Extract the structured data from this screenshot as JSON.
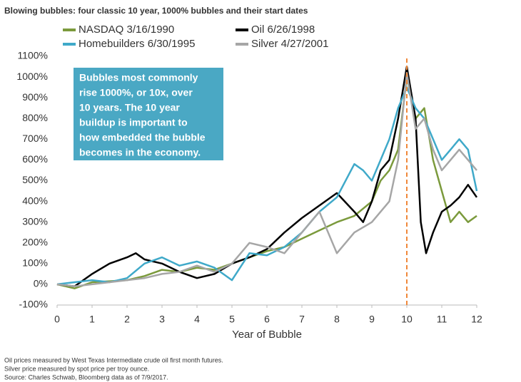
{
  "chart_data": {
    "type": "line",
    "title": "Blowing bubbles: four classic 10 year, 1000% bubbles and their start dates",
    "xlabel": "Year of Bubble",
    "xlim": [
      0,
      12
    ],
    "xticks": [
      0,
      1,
      2,
      3,
      4,
      5,
      6,
      7,
      8,
      9,
      10,
      11,
      12
    ],
    "ylim": [
      -100,
      1100
    ],
    "yticks": [
      {
        "value": -100,
        "label": "-100%"
      },
      {
        "value": 0,
        "label": "0%"
      },
      {
        "value": 100,
        "label": "100%"
      },
      {
        "value": 200,
        "label": "200%"
      },
      {
        "value": 300,
        "label": "300%"
      },
      {
        "value": 400,
        "label": "400%"
      },
      {
        "value": 500,
        "label": "500%"
      },
      {
        "value": 600,
        "label": "600%"
      },
      {
        "value": 700,
        "label": "700%"
      },
      {
        "value": 800,
        "label": "800%"
      },
      {
        "value": 900,
        "label": "900%"
      },
      {
        "value": 1000,
        "label": "1000%"
      },
      {
        "value": 1100,
        "label": "1100%"
      }
    ],
    "grid": false,
    "vline": {
      "x": 10,
      "color": "#f0883a"
    },
    "annotation": {
      "lines": [
        "Bubbles most commonly",
        "rise 1000%, or 10x, over",
        "10 years. The 10 year",
        "buildup is important to",
        "how embedded the bubble",
        "becomes in the economy."
      ],
      "color": "#4aa8c4"
    },
    "notes": [
      "Oil prices measured by West Texas Intermediate crude oil first month futures.",
      "Silver price measured by spot price per troy ounce.",
      "Source: Charles Schwab, Bloomberg data as of 7/9/2017."
    ],
    "series": [
      {
        "name": "NASDAQ 3/16/1990",
        "color": "#7b9a3c",
        "x": [
          0,
          0.5,
          1,
          1.5,
          2,
          2.5,
          3,
          3.5,
          4,
          4.5,
          5,
          5.5,
          6,
          6.5,
          7,
          7.5,
          8,
          8.5,
          9,
          9.25,
          9.5,
          9.75,
          10,
          10.25,
          10.5,
          10.75,
          11,
          11.25,
          11.5,
          11.75,
          12
        ],
        "values": [
          0,
          -20,
          10,
          15,
          20,
          40,
          70,
          60,
          80,
          70,
          100,
          130,
          160,
          180,
          220,
          260,
          300,
          330,
          400,
          500,
          550,
          650,
          1000,
          800,
          850,
          600,
          450,
          300,
          350,
          300,
          330
        ]
      },
      {
        "name": "Oil 6/26/1998",
        "color": "#000000",
        "x": [
          0,
          0.5,
          1,
          1.5,
          2,
          2.25,
          2.5,
          3,
          3.25,
          3.5,
          4,
          4.5,
          5,
          5.5,
          6,
          6.5,
          7,
          7.5,
          8,
          8.5,
          8.75,
          9,
          9.25,
          9.5,
          9.75,
          10,
          10.25,
          10.4,
          10.55,
          10.75,
          11,
          11.25,
          11.5,
          11.75,
          12
        ],
        "values": [
          0,
          -10,
          50,
          100,
          130,
          150,
          120,
          100,
          80,
          60,
          30,
          50,
          100,
          130,
          170,
          250,
          320,
          380,
          440,
          350,
          300,
          400,
          550,
          600,
          800,
          1050,
          800,
          300,
          150,
          250,
          350,
          380,
          420,
          480,
          420
        ]
      },
      {
        "name": "Homebuilders 6/30/1995",
        "color": "#3fa9c9",
        "x": [
          0,
          0.5,
          1,
          1.5,
          2,
          2.5,
          3,
          3.5,
          4,
          4.5,
          5,
          5.5,
          6,
          6.5,
          7,
          7.5,
          8,
          8.5,
          8.75,
          9,
          9.25,
          9.5,
          9.75,
          10,
          10.25,
          10.5,
          10.75,
          11,
          11.25,
          11.5,
          11.75,
          12
        ],
        "values": [
          0,
          10,
          20,
          10,
          30,
          100,
          130,
          90,
          110,
          80,
          20,
          150,
          140,
          180,
          250,
          350,
          420,
          580,
          550,
          500,
          600,
          700,
          850,
          950,
          850,
          800,
          700,
          600,
          650,
          700,
          650,
          450
        ]
      },
      {
        "name": "Silver 4/27/2001",
        "color": "#a6a6a6",
        "x": [
          0,
          0.5,
          1,
          1.5,
          2,
          2.5,
          3,
          3.5,
          4,
          4.5,
          5,
          5.5,
          6,
          6.5,
          7,
          7.5,
          8,
          8.5,
          9,
          9.25,
          9.5,
          9.75,
          10,
          10.25,
          10.5,
          10.75,
          11,
          11.25,
          11.5,
          11.75,
          12
        ],
        "values": [
          0,
          -10,
          0,
          10,
          20,
          30,
          50,
          60,
          90,
          60,
          100,
          200,
          180,
          150,
          250,
          350,
          150,
          250,
          300,
          350,
          400,
          600,
          1020,
          750,
          800,
          650,
          550,
          600,
          650,
          600,
          550
        ]
      }
    ]
  }
}
